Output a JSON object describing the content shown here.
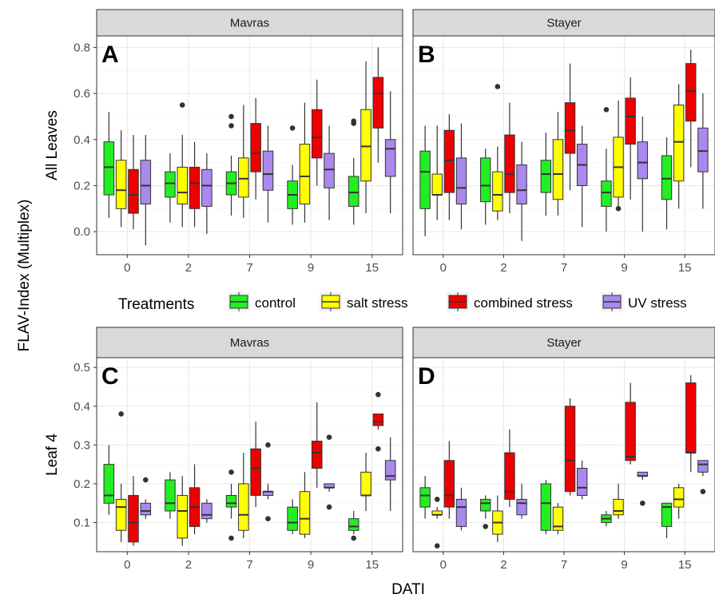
{
  "labels": {
    "ylabel": "FLAV-Index (Multiplex)",
    "xlabel": "DATI",
    "legend_title": "Treatments"
  },
  "legend": {
    "items": [
      {
        "name": "control",
        "color": "#22ee22"
      },
      {
        "name": "salt stress",
        "color": "#ffff00"
      },
      {
        "name": "combined stress",
        "color": "#ee0000"
      },
      {
        "name": "UV stress",
        "color": "#aa88ee"
      }
    ]
  },
  "chart_data": [
    {
      "type": "box",
      "panel": "A",
      "strip": "Mavras",
      "row_label": "All Leaves",
      "categories": [
        "0",
        "2",
        "7",
        "9",
        "15"
      ],
      "yticks": [
        0.0,
        0.2,
        0.4,
        0.6,
        0.8
      ],
      "ylim": [
        -0.1,
        0.85
      ],
      "series": [
        {
          "name": "control",
          "boxes": [
            {
              "q1": 0.16,
              "med": 0.28,
              "q3": 0.39,
              "lo": 0.06,
              "hi": 0.52,
              "out": []
            },
            {
              "q1": 0.15,
              "med": 0.21,
              "q3": 0.26,
              "lo": 0.04,
              "hi": 0.34,
              "out": []
            },
            {
              "q1": 0.16,
              "med": 0.21,
              "q3": 0.26,
              "lo": 0.07,
              "hi": 0.33,
              "out": [
                0.46,
                0.5
              ]
            },
            {
              "q1": 0.1,
              "med": 0.16,
              "q3": 0.22,
              "lo": 0.03,
              "hi": 0.29,
              "out": [
                0.45
              ]
            },
            {
              "q1": 0.11,
              "med": 0.17,
              "q3": 0.24,
              "lo": 0.03,
              "hi": 0.32,
              "out": [
                0.47,
                0.48
              ]
            }
          ]
        },
        {
          "name": "salt stress",
          "boxes": [
            {
              "q1": 0.1,
              "med": 0.18,
              "q3": 0.31,
              "lo": 0.02,
              "hi": 0.44,
              "out": []
            },
            {
              "q1": 0.12,
              "med": 0.17,
              "q3": 0.28,
              "lo": 0.02,
              "hi": 0.42,
              "out": [
                0.55
              ]
            },
            {
              "q1": 0.15,
              "med": 0.23,
              "q3": 0.32,
              "lo": 0.06,
              "hi": 0.55,
              "out": []
            },
            {
              "q1": 0.12,
              "med": 0.24,
              "q3": 0.38,
              "lo": 0.04,
              "hi": 0.56,
              "out": []
            },
            {
              "q1": 0.22,
              "med": 0.37,
              "q3": 0.53,
              "lo": 0.08,
              "hi": 0.74,
              "out": []
            }
          ]
        },
        {
          "name": "combined stress",
          "boxes": [
            {
              "q1": 0.08,
              "med": 0.16,
              "q3": 0.27,
              "lo": 0.01,
              "hi": 0.42,
              "out": []
            },
            {
              "q1": 0.1,
              "med": 0.21,
              "q3": 0.28,
              "lo": 0.02,
              "hi": 0.39,
              "out": []
            },
            {
              "q1": 0.26,
              "med": 0.34,
              "q3": 0.47,
              "lo": 0.14,
              "hi": 0.58,
              "out": []
            },
            {
              "q1": 0.32,
              "med": 0.41,
              "q3": 0.53,
              "lo": 0.2,
              "hi": 0.66,
              "out": []
            },
            {
              "q1": 0.45,
              "med": 0.6,
              "q3": 0.67,
              "lo": 0.3,
              "hi": 0.8,
              "out": []
            }
          ]
        },
        {
          "name": "UV stress",
          "boxes": [
            {
              "q1": 0.12,
              "med": 0.2,
              "q3": 0.31,
              "lo": -0.06,
              "hi": 0.42,
              "out": []
            },
            {
              "q1": 0.11,
              "med": 0.2,
              "q3": 0.27,
              "lo": -0.01,
              "hi": 0.34,
              "out": []
            },
            {
              "q1": 0.18,
              "med": 0.25,
              "q3": 0.35,
              "lo": 0.04,
              "hi": 0.46,
              "out": []
            },
            {
              "q1": 0.19,
              "med": 0.27,
              "q3": 0.34,
              "lo": 0.05,
              "hi": 0.46,
              "out": []
            },
            {
              "q1": 0.24,
              "med": 0.36,
              "q3": 0.4,
              "lo": 0.08,
              "hi": 0.61,
              "out": []
            }
          ]
        }
      ]
    },
    {
      "type": "box",
      "panel": "B",
      "strip": "Stayer",
      "row_label": "All Leaves",
      "categories": [
        "0",
        "2",
        "7",
        "9",
        "15"
      ],
      "yticks": [
        0.0,
        0.2,
        0.4,
        0.6,
        0.8
      ],
      "ylim": [
        -0.1,
        0.85
      ],
      "series": [
        {
          "name": "control",
          "boxes": [
            {
              "q1": 0.1,
              "med": 0.26,
              "q3": 0.35,
              "lo": -0.02,
              "hi": 0.46,
              "out": []
            },
            {
              "q1": 0.13,
              "med": 0.2,
              "q3": 0.32,
              "lo": 0.03,
              "hi": 0.36,
              "out": []
            },
            {
              "q1": 0.17,
              "med": 0.25,
              "q3": 0.31,
              "lo": 0.07,
              "hi": 0.43,
              "out": []
            },
            {
              "q1": 0.11,
              "med": 0.17,
              "q3": 0.22,
              "lo": 0.0,
              "hi": 0.36,
              "out": [
                0.53
              ]
            },
            {
              "q1": 0.14,
              "med": 0.23,
              "q3": 0.33,
              "lo": 0.01,
              "hi": 0.41,
              "out": []
            }
          ]
        },
        {
          "name": "salt stress",
          "boxes": [
            {
              "q1": 0.16,
              "med": 0.16,
              "q3": 0.25,
              "lo": 0.05,
              "hi": 0.46,
              "out": []
            },
            {
              "q1": 0.09,
              "med": 0.16,
              "q3": 0.26,
              "lo": 0.05,
              "hi": 0.37,
              "out": [
                0.63
              ]
            },
            {
              "q1": 0.14,
              "med": 0.25,
              "q3": 0.4,
              "lo": 0.07,
              "hi": 0.52,
              "out": []
            },
            {
              "q1": 0.15,
              "med": 0.28,
              "q3": 0.41,
              "lo": 0.1,
              "hi": 0.57,
              "out": [
                0.1
              ]
            },
            {
              "q1": 0.22,
              "med": 0.39,
              "q3": 0.55,
              "lo": 0.1,
              "hi": 0.64,
              "out": []
            }
          ]
        },
        {
          "name": "combined stress",
          "boxes": [
            {
              "q1": 0.17,
              "med": 0.31,
              "q3": 0.44,
              "lo": 0.05,
              "hi": 0.51,
              "out": []
            },
            {
              "q1": 0.17,
              "med": 0.25,
              "q3": 0.42,
              "lo": 0.08,
              "hi": 0.56,
              "out": []
            },
            {
              "q1": 0.34,
              "med": 0.44,
              "q3": 0.56,
              "lo": 0.18,
              "hi": 0.73,
              "out": []
            },
            {
              "q1": 0.38,
              "med": 0.5,
              "q3": 0.58,
              "lo": 0.14,
              "hi": 0.67,
              "out": []
            },
            {
              "q1": 0.48,
              "med": 0.61,
              "q3": 0.73,
              "lo": 0.28,
              "hi": 0.79,
              "out": []
            }
          ]
        },
        {
          "name": "UV stress",
          "boxes": [
            {
              "q1": 0.12,
              "med": 0.19,
              "q3": 0.32,
              "lo": 0.01,
              "hi": 0.47,
              "out": []
            },
            {
              "q1": 0.12,
              "med": 0.18,
              "q3": 0.29,
              "lo": -0.04,
              "hi": 0.39,
              "out": []
            },
            {
              "q1": 0.2,
              "med": 0.29,
              "q3": 0.38,
              "lo": 0.02,
              "hi": 0.46,
              "out": []
            },
            {
              "q1": 0.23,
              "med": 0.3,
              "q3": 0.39,
              "lo": 0.0,
              "hi": 0.5,
              "out": []
            },
            {
              "q1": 0.26,
              "med": 0.35,
              "q3": 0.45,
              "lo": 0.1,
              "hi": 0.6,
              "out": []
            }
          ]
        }
      ]
    },
    {
      "type": "box",
      "panel": "C",
      "strip": "Mavras",
      "row_label": "Leaf 4",
      "categories": [
        "0",
        "2",
        "7",
        "9",
        "15"
      ],
      "yticks": [
        0.1,
        0.2,
        0.3,
        0.4,
        0.5
      ],
      "ylim": [
        0.025,
        0.525
      ],
      "series": [
        {
          "name": "control",
          "boxes": [
            {
              "q1": 0.15,
              "med": 0.17,
              "q3": 0.25,
              "lo": 0.12,
              "hi": 0.3,
              "out": []
            },
            {
              "q1": 0.13,
              "med": 0.15,
              "q3": 0.21,
              "lo": 0.11,
              "hi": 0.23,
              "out": []
            },
            {
              "q1": 0.14,
              "med": 0.15,
              "q3": 0.17,
              "lo": 0.11,
              "hi": 0.2,
              "out": [
                0.06,
                0.23
              ]
            },
            {
              "q1": 0.08,
              "med": 0.1,
              "q3": 0.14,
              "lo": 0.07,
              "hi": 0.16,
              "out": []
            },
            {
              "q1": 0.08,
              "med": 0.09,
              "q3": 0.11,
              "lo": 0.07,
              "hi": 0.13,
              "out": [
                0.06
              ]
            }
          ]
        },
        {
          "name": "salt stress",
          "boxes": [
            {
              "q1": 0.08,
              "med": 0.14,
              "q3": 0.16,
              "lo": 0.05,
              "hi": 0.2,
              "out": [
                0.38
              ]
            },
            {
              "q1": 0.06,
              "med": 0.13,
              "q3": 0.17,
              "lo": 0.04,
              "hi": 0.22,
              "out": []
            },
            {
              "q1": 0.08,
              "med": 0.12,
              "q3": 0.2,
              "lo": 0.06,
              "hi": 0.28,
              "out": []
            },
            {
              "q1": 0.07,
              "med": 0.11,
              "q3": 0.18,
              "lo": 0.06,
              "hi": 0.23,
              "out": []
            },
            {
              "q1": 0.17,
              "med": 0.17,
              "q3": 0.23,
              "lo": 0.13,
              "hi": 0.28,
              "out": []
            }
          ]
        },
        {
          "name": "combined stress",
          "boxes": [
            {
              "q1": 0.05,
              "med": 0.1,
              "q3": 0.17,
              "lo": 0.04,
              "hi": 0.22,
              "out": []
            },
            {
              "q1": 0.09,
              "med": 0.14,
              "q3": 0.19,
              "lo": 0.07,
              "hi": 0.25,
              "out": []
            },
            {
              "q1": 0.17,
              "med": 0.24,
              "q3": 0.29,
              "lo": 0.14,
              "hi": 0.36,
              "out": []
            },
            {
              "q1": 0.24,
              "med": 0.28,
              "q3": 0.31,
              "lo": 0.19,
              "hi": 0.41,
              "out": []
            },
            {
              "q1": 0.35,
              "med": 0.36,
              "q3": 0.38,
              "lo": 0.34,
              "hi": 0.38,
              "out": [
                0.29,
                0.43
              ]
            }
          ]
        },
        {
          "name": "UV stress",
          "boxes": [
            {
              "q1": 0.12,
              "med": 0.13,
              "q3": 0.15,
              "lo": 0.11,
              "hi": 0.16,
              "out": [
                0.21
              ]
            },
            {
              "q1": 0.11,
              "med": 0.12,
              "q3": 0.15,
              "lo": 0.1,
              "hi": 0.16,
              "out": []
            },
            {
              "q1": 0.17,
              "med": 0.18,
              "q3": 0.18,
              "lo": 0.16,
              "hi": 0.2,
              "out": [
                0.11,
                0.3
              ]
            },
            {
              "q1": 0.19,
              "med": 0.19,
              "q3": 0.2,
              "lo": 0.18,
              "hi": 0.2,
              "out": [
                0.14,
                0.32
              ]
            },
            {
              "q1": 0.21,
              "med": 0.22,
              "q3": 0.26,
              "lo": 0.13,
              "hi": 0.32,
              "out": []
            }
          ]
        }
      ]
    },
    {
      "type": "box",
      "panel": "D",
      "strip": "Stayer",
      "row_label": "Leaf 4",
      "categories": [
        "0",
        "2",
        "7",
        "9",
        "15"
      ],
      "yticks": [
        0.1,
        0.2,
        0.3,
        0.4,
        0.5
      ],
      "ylim": [
        0.025,
        0.525
      ],
      "series": [
        {
          "name": "control",
          "boxes": [
            {
              "q1": 0.14,
              "med": 0.17,
              "q3": 0.19,
              "lo": 0.11,
              "hi": 0.22,
              "out": []
            },
            {
              "q1": 0.13,
              "med": 0.15,
              "q3": 0.16,
              "lo": 0.11,
              "hi": 0.17,
              "out": [
                0.09
              ]
            },
            {
              "q1": 0.08,
              "med": 0.15,
              "q3": 0.2,
              "lo": 0.07,
              "hi": 0.21,
              "out": []
            },
            {
              "q1": 0.1,
              "med": 0.11,
              "q3": 0.12,
              "lo": 0.09,
              "hi": 0.13,
              "out": []
            },
            {
              "q1": 0.09,
              "med": 0.14,
              "q3": 0.15,
              "lo": 0.06,
              "hi": 0.15,
              "out": []
            }
          ]
        },
        {
          "name": "salt stress",
          "boxes": [
            {
              "q1": 0.12,
              "med": 0.12,
              "q3": 0.13,
              "lo": 0.11,
              "hi": 0.14,
              "out": [
                0.04,
                0.16
              ]
            },
            {
              "q1": 0.07,
              "med": 0.1,
              "q3": 0.13,
              "lo": 0.05,
              "hi": 0.17,
              "out": []
            },
            {
              "q1": 0.08,
              "med": 0.09,
              "q3": 0.14,
              "lo": 0.07,
              "hi": 0.15,
              "out": []
            },
            {
              "q1": 0.12,
              "med": 0.13,
              "q3": 0.16,
              "lo": 0.11,
              "hi": 0.2,
              "out": []
            },
            {
              "q1": 0.14,
              "med": 0.16,
              "q3": 0.19,
              "lo": 0.11,
              "hi": 0.2,
              "out": []
            }
          ]
        },
        {
          "name": "combined stress",
          "boxes": [
            {
              "q1": 0.14,
              "med": 0.17,
              "q3": 0.26,
              "lo": 0.11,
              "hi": 0.31,
              "out": []
            },
            {
              "q1": 0.16,
              "med": 0.18,
              "q3": 0.28,
              "lo": 0.14,
              "hi": 0.34,
              "out": []
            },
            {
              "q1": 0.18,
              "med": 0.26,
              "q3": 0.4,
              "lo": 0.17,
              "hi": 0.42,
              "out": []
            },
            {
              "q1": 0.26,
              "med": 0.27,
              "q3": 0.41,
              "lo": 0.25,
              "hi": 0.46,
              "out": []
            },
            {
              "q1": 0.28,
              "med": 0.28,
              "q3": 0.46,
              "lo": 0.23,
              "hi": 0.48,
              "out": []
            }
          ]
        },
        {
          "name": "UV stress",
          "boxes": [
            {
              "q1": 0.09,
              "med": 0.14,
              "q3": 0.16,
              "lo": 0.08,
              "hi": 0.19,
              "out": []
            },
            {
              "q1": 0.12,
              "med": 0.15,
              "q3": 0.16,
              "lo": 0.11,
              "hi": 0.2,
              "out": []
            },
            {
              "q1": 0.17,
              "med": 0.19,
              "q3": 0.24,
              "lo": 0.16,
              "hi": 0.26,
              "out": []
            },
            {
              "q1": 0.22,
              "med": 0.22,
              "q3": 0.23,
              "lo": 0.21,
              "hi": 0.23,
              "out": [
                0.15
              ]
            },
            {
              "q1": 0.23,
              "med": 0.25,
              "q3": 0.26,
              "lo": 0.22,
              "hi": 0.26,
              "out": [
                0.18
              ]
            }
          ]
        }
      ]
    }
  ]
}
